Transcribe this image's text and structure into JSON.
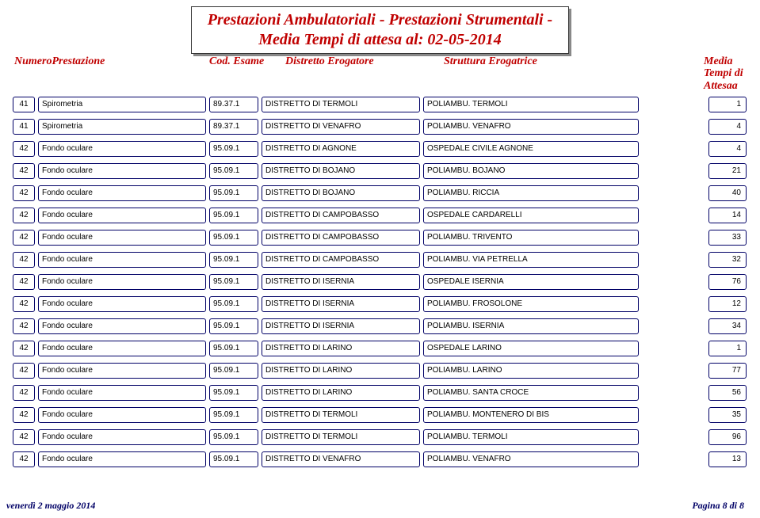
{
  "title_line1": "Prestazioni Ambulatoriali - Prestazioni Strumentali -",
  "title_line2": "Media  Tempi di attesa al: 02-05-2014",
  "columns": {
    "numero": "NumeroPrestazione",
    "cod": "Cod. Esame",
    "distretto": "Distretto Erogatore",
    "struttura": "Struttura Erogatrice",
    "media": "Media Tempi di Attesaa"
  },
  "rows": [
    {
      "n": "41",
      "prest": "Spirometria",
      "cod": "89.37.1",
      "dist": "DISTRETTO DI TERMOLI",
      "strut": "POLIAMBU. TERMOLI",
      "media": "1"
    },
    {
      "n": "41",
      "prest": "Spirometria",
      "cod": "89.37.1",
      "dist": "DISTRETTO DI VENAFRO",
      "strut": "POLIAMBU. VENAFRO",
      "media": "4"
    },
    {
      "n": "42",
      "prest": "Fondo oculare",
      "cod": "95.09.1",
      "dist": "DISTRETTO DI AGNONE",
      "strut": "OSPEDALE CIVILE AGNONE",
      "media": "4"
    },
    {
      "n": "42",
      "prest": "Fondo oculare",
      "cod": "95.09.1",
      "dist": "DISTRETTO DI BOJANO",
      "strut": "POLIAMBU. BOJANO",
      "media": "21"
    },
    {
      "n": "42",
      "prest": "Fondo oculare",
      "cod": "95.09.1",
      "dist": "DISTRETTO DI BOJANO",
      "strut": "POLIAMBU. RICCIA",
      "media": "40"
    },
    {
      "n": "42",
      "prest": "Fondo oculare",
      "cod": "95.09.1",
      "dist": "DISTRETTO DI CAMPOBASSO",
      "strut": "OSPEDALE CARDARELLI",
      "media": "14"
    },
    {
      "n": "42",
      "prest": "Fondo oculare",
      "cod": "95.09.1",
      "dist": "DISTRETTO DI CAMPOBASSO",
      "strut": "POLIAMBU. TRIVENTO",
      "media": "33"
    },
    {
      "n": "42",
      "prest": "Fondo oculare",
      "cod": "95.09.1",
      "dist": "DISTRETTO DI CAMPOBASSO",
      "strut": "POLIAMBU. VIA PETRELLA",
      "media": "32"
    },
    {
      "n": "42",
      "prest": "Fondo oculare",
      "cod": "95.09.1",
      "dist": "DISTRETTO DI ISERNIA",
      "strut": "OSPEDALE ISERNIA",
      "media": "76"
    },
    {
      "n": "42",
      "prest": "Fondo oculare",
      "cod": "95.09.1",
      "dist": "DISTRETTO DI ISERNIA",
      "strut": "POLIAMBU. FROSOLONE",
      "media": "12"
    },
    {
      "n": "42",
      "prest": "Fondo oculare",
      "cod": "95.09.1",
      "dist": "DISTRETTO DI ISERNIA",
      "strut": "POLIAMBU. ISERNIA",
      "media": "34"
    },
    {
      "n": "42",
      "prest": "Fondo oculare",
      "cod": "95.09.1",
      "dist": "DISTRETTO DI LARINO",
      "strut": "OSPEDALE LARINO",
      "media": "1"
    },
    {
      "n": "42",
      "prest": "Fondo oculare",
      "cod": "95.09.1",
      "dist": "DISTRETTO DI LARINO",
      "strut": "POLIAMBU. LARINO",
      "media": "77"
    },
    {
      "n": "42",
      "prest": "Fondo oculare",
      "cod": "95.09.1",
      "dist": "DISTRETTO DI LARINO",
      "strut": "POLIAMBU. SANTA CROCE",
      "media": "56"
    },
    {
      "n": "42",
      "prest": "Fondo oculare",
      "cod": "95.09.1",
      "dist": "DISTRETTO DI TERMOLI",
      "strut": "POLIAMBU. MONTENERO DI BIS",
      "media": "35"
    },
    {
      "n": "42",
      "prest": "Fondo oculare",
      "cod": "95.09.1",
      "dist": "DISTRETTO DI TERMOLI",
      "strut": "POLIAMBU. TERMOLI",
      "media": "96"
    },
    {
      "n": "42",
      "prest": "Fondo oculare",
      "cod": "95.09.1",
      "dist": "DISTRETTO DI VENAFRO",
      "strut": "POLIAMBU. VENAFRO",
      "media": "13"
    }
  ],
  "footer": {
    "left": "venerdì 2 maggio 2014",
    "right": "Pagina 8 di 8"
  },
  "colors": {
    "title": "#c00000",
    "border": "#000066",
    "footer": "#000066"
  }
}
